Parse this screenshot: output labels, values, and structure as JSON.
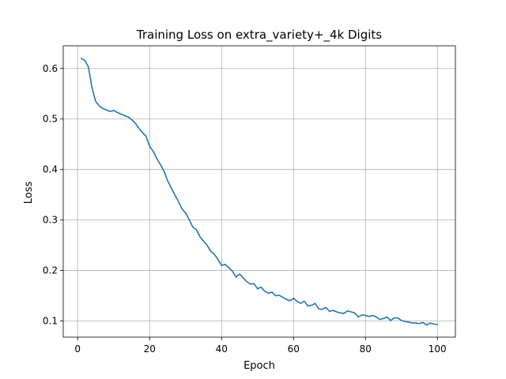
{
  "chart_data": {
    "type": "line",
    "title": "Training Loss on extra_variety+_4k Digits",
    "xlabel": "Epoch",
    "ylabel": "Loss",
    "xlim": [
      -4,
      105
    ],
    "ylim": [
      0.068,
      0.645
    ],
    "grid": true,
    "x_ticks": [
      0,
      20,
      40,
      60,
      80,
      100
    ],
    "y_ticks": [
      0.1,
      0.2,
      0.3,
      0.4,
      0.5,
      0.6
    ],
    "x_tick_labels": [
      "0",
      "20",
      "40",
      "60",
      "80",
      "100"
    ],
    "y_tick_labels": [
      "0.1",
      "0.2",
      "0.3",
      "0.4",
      "0.5",
      "0.6"
    ],
    "line_color": "#1f77b4",
    "series": [
      {
        "x": [
          1,
          2,
          3,
          4,
          5,
          6,
          7,
          8,
          9,
          10,
          11,
          12,
          13,
          14,
          15,
          16,
          17,
          18,
          19,
          20,
          21,
          22,
          23,
          24,
          25,
          26,
          27,
          28,
          29,
          30,
          31,
          32,
          33,
          34,
          35,
          36,
          37,
          38,
          39,
          40,
          41,
          42,
          43,
          44,
          45,
          46,
          47,
          48,
          49,
          50,
          51,
          52,
          53,
          54,
          55,
          56,
          57,
          58,
          59,
          60,
          61,
          62,
          63,
          64,
          65,
          66,
          67,
          68,
          69,
          70,
          71,
          72,
          73,
          74,
          75,
          76,
          77,
          78,
          79,
          80,
          81,
          82,
          83,
          84,
          85,
          86,
          87,
          88,
          89,
          90,
          91,
          92,
          93,
          94,
          95,
          96,
          97,
          98,
          99,
          100
        ],
        "values": [
          0.62,
          0.616,
          0.603,
          0.562,
          0.535,
          0.526,
          0.521,
          0.518,
          0.515,
          0.517,
          0.513,
          0.51,
          0.507,
          0.504,
          0.499,
          0.492,
          0.482,
          0.473,
          0.466,
          0.446,
          0.436,
          0.422,
          0.41,
          0.397,
          0.378,
          0.364,
          0.35,
          0.337,
          0.322,
          0.314,
          0.301,
          0.286,
          0.281,
          0.267,
          0.258,
          0.25,
          0.238,
          0.232,
          0.222,
          0.21,
          0.212,
          0.206,
          0.199,
          0.187,
          0.193,
          0.186,
          0.178,
          0.173,
          0.174,
          0.164,
          0.167,
          0.159,
          0.155,
          0.157,
          0.15,
          0.151,
          0.147,
          0.143,
          0.14,
          0.145,
          0.139,
          0.135,
          0.139,
          0.13,
          0.131,
          0.135,
          0.124,
          0.123,
          0.127,
          0.119,
          0.121,
          0.118,
          0.116,
          0.115,
          0.12,
          0.118,
          0.116,
          0.108,
          0.112,
          0.111,
          0.109,
          0.111,
          0.108,
          0.103,
          0.105,
          0.108,
          0.101,
          0.106,
          0.106,
          0.101,
          0.099,
          0.098,
          0.096,
          0.096,
          0.095,
          0.097,
          0.092,
          0.096,
          0.094,
          0.093
        ]
      }
    ]
  }
}
